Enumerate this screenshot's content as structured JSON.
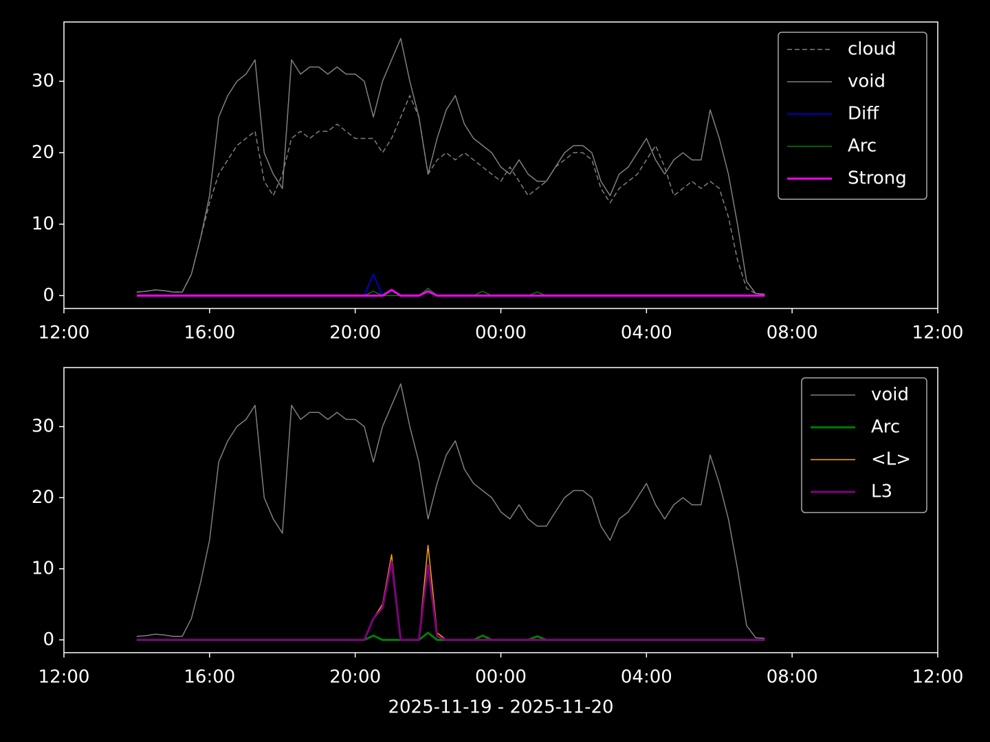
{
  "chart_data": [
    {
      "type": "line",
      "x": [
        14.0,
        14.25,
        14.5,
        14.75,
        15.0,
        15.25,
        15.5,
        15.75,
        16.0,
        16.25,
        16.5,
        16.75,
        17.0,
        17.25,
        17.5,
        17.75,
        18.0,
        18.25,
        18.5,
        18.75,
        19.0,
        19.25,
        19.5,
        19.75,
        20.0,
        20.25,
        20.5,
        20.75,
        21.0,
        21.25,
        21.5,
        21.75,
        22.0,
        22.25,
        22.5,
        22.75,
        23.0,
        23.25,
        23.5,
        23.75,
        24.0,
        24.25,
        24.5,
        24.75,
        25.0,
        25.25,
        25.5,
        25.75,
        26.0,
        26.25,
        26.5,
        26.75,
        27.0,
        27.25,
        27.5,
        27.75,
        28.0,
        28.25,
        28.5,
        28.75,
        29.0,
        29.25,
        29.5,
        29.75,
        30.0,
        30.25,
        30.5,
        30.75,
        31.0,
        31.25
      ],
      "series": [
        {
          "name": "cloud",
          "color": "#808080",
          "linestyle": "dashed",
          "linewidth": 1.5,
          "values": [
            0.5,
            0.6,
            0.8,
            0.7,
            0.5,
            0.5,
            3,
            8,
            13,
            17,
            19,
            21,
            22,
            23,
            16,
            14,
            17,
            22,
            23,
            22,
            23,
            23,
            24,
            23,
            22,
            22,
            22,
            20,
            22,
            25,
            28,
            25,
            17,
            19,
            20,
            19,
            20,
            19,
            18,
            17,
            16,
            18,
            16,
            14,
            15,
            16,
            18,
            19,
            20,
            20,
            19,
            15,
            13,
            15,
            16,
            17,
            19,
            21,
            18,
            14,
            15,
            16,
            15,
            16,
            15,
            11,
            5,
            1,
            0.3,
            0.2
          ]
        },
        {
          "name": "void",
          "color": "#808080",
          "linestyle": "solid",
          "linewidth": 1.5,
          "values": [
            0.5,
            0.6,
            0.8,
            0.7,
            0.5,
            0.5,
            3,
            8,
            14,
            25,
            28,
            30,
            31,
            33,
            20,
            17,
            15,
            33,
            31,
            32,
            32,
            31,
            32,
            31,
            31,
            30,
            25,
            30,
            33,
            36,
            30,
            25,
            17,
            22,
            26,
            28,
            24,
            22,
            21,
            20,
            18,
            17,
            19,
            17,
            16,
            16,
            18,
            20,
            21,
            21,
            20,
            16,
            14,
            17,
            18,
            20,
            22,
            19,
            17,
            19,
            20,
            19,
            19,
            26,
            22,
            17,
            10,
            2,
            0.3,
            0.2
          ]
        },
        {
          "name": "Diff",
          "color": "#0000ff",
          "linestyle": "solid",
          "linewidth": 1.5,
          "values": [
            0,
            0,
            0,
            0,
            0,
            0,
            0,
            0,
            0,
            0,
            0,
            0,
            0,
            0,
            0,
            0,
            0,
            0,
            0,
            0,
            0,
            0,
            0,
            0,
            0,
            0,
            3,
            0,
            0,
            0,
            0,
            0,
            1,
            0,
            0,
            0,
            0,
            0,
            0,
            0,
            0,
            0,
            0,
            0,
            0,
            0,
            0,
            0,
            0,
            0,
            0,
            0,
            0,
            0,
            0,
            0,
            0,
            0,
            0,
            0,
            0,
            0,
            0,
            0,
            0,
            0,
            0,
            0,
            0,
            0
          ]
        },
        {
          "name": "Arc",
          "color": "#008000",
          "linestyle": "solid",
          "linewidth": 1.5,
          "values": [
            0,
            0,
            0,
            0,
            0,
            0,
            0,
            0,
            0,
            0,
            0,
            0,
            0,
            0,
            0,
            0,
            0,
            0,
            0,
            0,
            0,
            0,
            0,
            0,
            0,
            0,
            0.6,
            0,
            0,
            0,
            0,
            0,
            1,
            0,
            0,
            0,
            0,
            0,
            0.6,
            0,
            0,
            0,
            0,
            0,
            0.5,
            0,
            0,
            0,
            0,
            0,
            0,
            0,
            0,
            0,
            0,
            0,
            0,
            0,
            0,
            0,
            0,
            0,
            0,
            0,
            0,
            0,
            0,
            0,
            0,
            0
          ]
        },
        {
          "name": "Strong",
          "color": "#ff00ff",
          "linestyle": "solid",
          "linewidth": 3,
          "values": [
            0,
            0,
            0,
            0,
            0,
            0,
            0,
            0,
            0,
            0,
            0,
            0,
            0,
            0,
            0,
            0,
            0,
            0,
            0,
            0,
            0,
            0,
            0,
            0,
            0,
            0,
            0,
            0,
            0.8,
            0,
            0,
            0,
            0.6,
            0,
            0,
            0,
            0,
            0,
            0,
            0,
            0,
            0,
            0,
            0,
            0,
            0,
            0,
            0,
            0,
            0,
            0,
            0,
            0,
            0,
            0,
            0,
            0,
            0,
            0,
            0,
            0,
            0,
            0,
            0,
            0,
            0,
            0,
            0,
            0,
            0
          ]
        }
      ],
      "xlim": [
        12,
        36
      ],
      "xticks": [
        {
          "value": 12,
          "label": "12:00"
        },
        {
          "value": 16,
          "label": "16:00"
        },
        {
          "value": 20,
          "label": "20:00"
        },
        {
          "value": 24,
          "label": "00:00"
        },
        {
          "value": 28,
          "label": "04:00"
        },
        {
          "value": 32,
          "label": "08:00"
        },
        {
          "value": 36,
          "label": "12:00"
        }
      ],
      "ylim": [
        -1.8,
        38.3
      ],
      "yticks": [
        0,
        10,
        20,
        30
      ],
      "legend": "upper right"
    },
    {
      "type": "line",
      "x": [
        14.0,
        14.25,
        14.5,
        14.75,
        15.0,
        15.25,
        15.5,
        15.75,
        16.0,
        16.25,
        16.5,
        16.75,
        17.0,
        17.25,
        17.5,
        17.75,
        18.0,
        18.25,
        18.5,
        18.75,
        19.0,
        19.25,
        19.5,
        19.75,
        20.0,
        20.25,
        20.5,
        20.75,
        21.0,
        21.25,
        21.5,
        21.75,
        22.0,
        22.25,
        22.5,
        22.75,
        23.0,
        23.25,
        23.5,
        23.75,
        24.0,
        24.25,
        24.5,
        24.75,
        25.0,
        25.25,
        25.5,
        25.75,
        26.0,
        26.25,
        26.5,
        26.75,
        27.0,
        27.25,
        27.5,
        27.75,
        28.0,
        28.25,
        28.5,
        28.75,
        29.0,
        29.25,
        29.5,
        29.75,
        30.0,
        30.25,
        30.5,
        30.75,
        31.0,
        31.25
      ],
      "series": [
        {
          "name": "void",
          "color": "#808080",
          "linestyle": "solid",
          "linewidth": 1.5,
          "values": [
            0.5,
            0.6,
            0.8,
            0.7,
            0.5,
            0.5,
            3,
            8,
            14,
            25,
            28,
            30,
            31,
            33,
            20,
            17,
            15,
            33,
            31,
            32,
            32,
            31,
            32,
            31,
            31,
            30,
            25,
            30,
            33,
            36,
            30,
            25,
            17,
            22,
            26,
            28,
            24,
            22,
            21,
            20,
            18,
            17,
            19,
            17,
            16,
            16,
            18,
            20,
            21,
            21,
            20,
            16,
            14,
            17,
            18,
            20,
            22,
            19,
            17,
            19,
            20,
            19,
            19,
            26,
            22,
            17,
            10,
            2,
            0.3,
            0.2
          ]
        },
        {
          "name": "Arc",
          "color": "#008000",
          "linestyle": "solid",
          "linewidth": 3,
          "values": [
            0,
            0,
            0,
            0,
            0,
            0,
            0,
            0,
            0,
            0,
            0,
            0,
            0,
            0,
            0,
            0,
            0,
            0,
            0,
            0,
            0,
            0,
            0,
            0,
            0,
            0,
            0.6,
            0,
            0,
            0,
            0,
            0,
            1,
            0,
            0,
            0,
            0,
            0,
            0.6,
            0,
            0,
            0,
            0,
            0,
            0.5,
            0,
            0,
            0,
            0,
            0,
            0,
            0,
            0,
            0,
            0,
            0,
            0,
            0,
            0,
            0,
            0,
            0,
            0,
            0,
            0,
            0,
            0,
            0,
            0,
            0
          ]
        },
        {
          "name": "<L>",
          "color": "#ffa500",
          "linestyle": "solid",
          "linewidth": 1.5,
          "values": [
            0,
            0,
            0,
            0,
            0,
            0,
            0,
            0,
            0,
            0,
            0,
            0,
            0,
            0,
            0,
            0,
            0,
            0,
            0,
            0,
            0,
            0,
            0,
            0,
            0,
            0,
            3,
            5,
            12,
            0,
            0,
            0,
            13.3,
            1,
            0,
            0,
            0,
            0,
            0,
            0,
            0,
            0,
            0,
            0,
            0,
            0,
            0,
            0,
            0,
            0,
            0,
            0,
            0,
            0,
            0,
            0,
            0,
            0,
            0,
            0,
            0,
            0,
            0,
            0,
            0,
            0,
            0,
            0,
            0,
            0
          ]
        },
        {
          "name": "L3",
          "color": "#800080",
          "linestyle": "solid",
          "linewidth": 3,
          "values": [
            0,
            0,
            0,
            0,
            0,
            0,
            0,
            0,
            0,
            0,
            0,
            0,
            0,
            0,
            0,
            0,
            0,
            0,
            0,
            0,
            0,
            0,
            0,
            0,
            0,
            0,
            3,
            4.5,
            11,
            0,
            0,
            0,
            10.5,
            0.5,
            0,
            0,
            0,
            0,
            0,
            0,
            0,
            0,
            0,
            0,
            0,
            0,
            0,
            0,
            0,
            0,
            0,
            0,
            0,
            0,
            0,
            0,
            0,
            0,
            0,
            0,
            0,
            0,
            0,
            0,
            0,
            0,
            0,
            0,
            0,
            0
          ]
        }
      ],
      "xlim": [
        12,
        36
      ],
      "xticks": [
        {
          "value": 12,
          "label": "12:00"
        },
        {
          "value": 16,
          "label": "16:00"
        },
        {
          "value": 20,
          "label": "20:00"
        },
        {
          "value": 24,
          "label": "00:00"
        },
        {
          "value": 28,
          "label": "04:00"
        },
        {
          "value": 32,
          "label": "08:00"
        },
        {
          "value": 36,
          "label": "12:00"
        }
      ],
      "ylim": [
        -1.8,
        38.3
      ],
      "yticks": [
        0,
        10,
        20,
        30
      ],
      "legend": "upper right",
      "xlabel": "2025-11-19 - 2025-11-20"
    }
  ]
}
